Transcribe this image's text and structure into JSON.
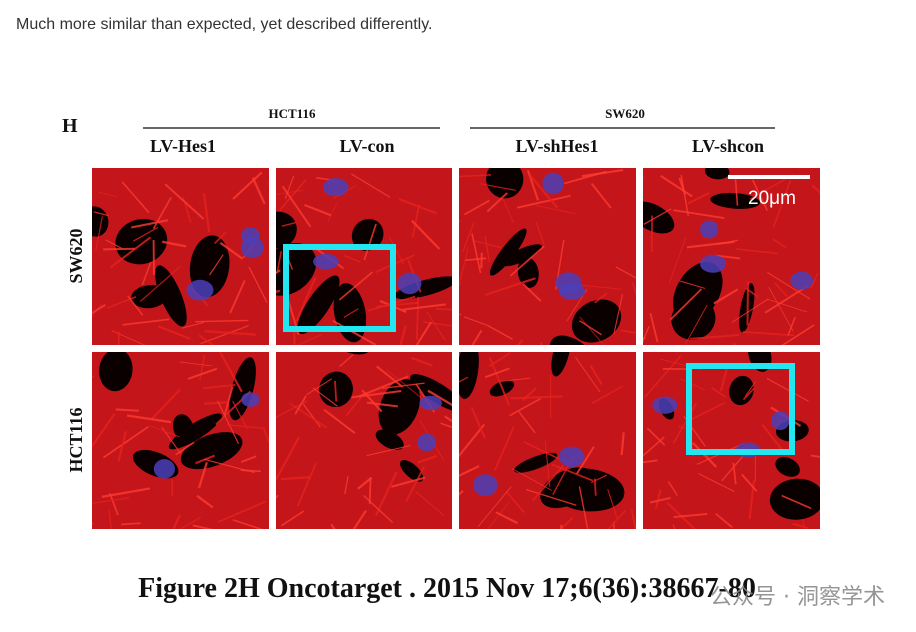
{
  "caption": "Much more similar than expected, yet described differently.",
  "figure": {
    "panel_label": "H",
    "groups": [
      "HCT116",
      "SW620"
    ],
    "columns": [
      "LV-Hes1",
      "LV-con",
      "LV-shHes1",
      "LV-shcon"
    ],
    "rows": [
      "SW620",
      "HCT116"
    ],
    "scale_bar": "20μm",
    "citation": "Figure 2H Oncotarget . 2015 Nov 17;6(36):38667-80"
  },
  "watermark": "公众号 · 洞察学术"
}
